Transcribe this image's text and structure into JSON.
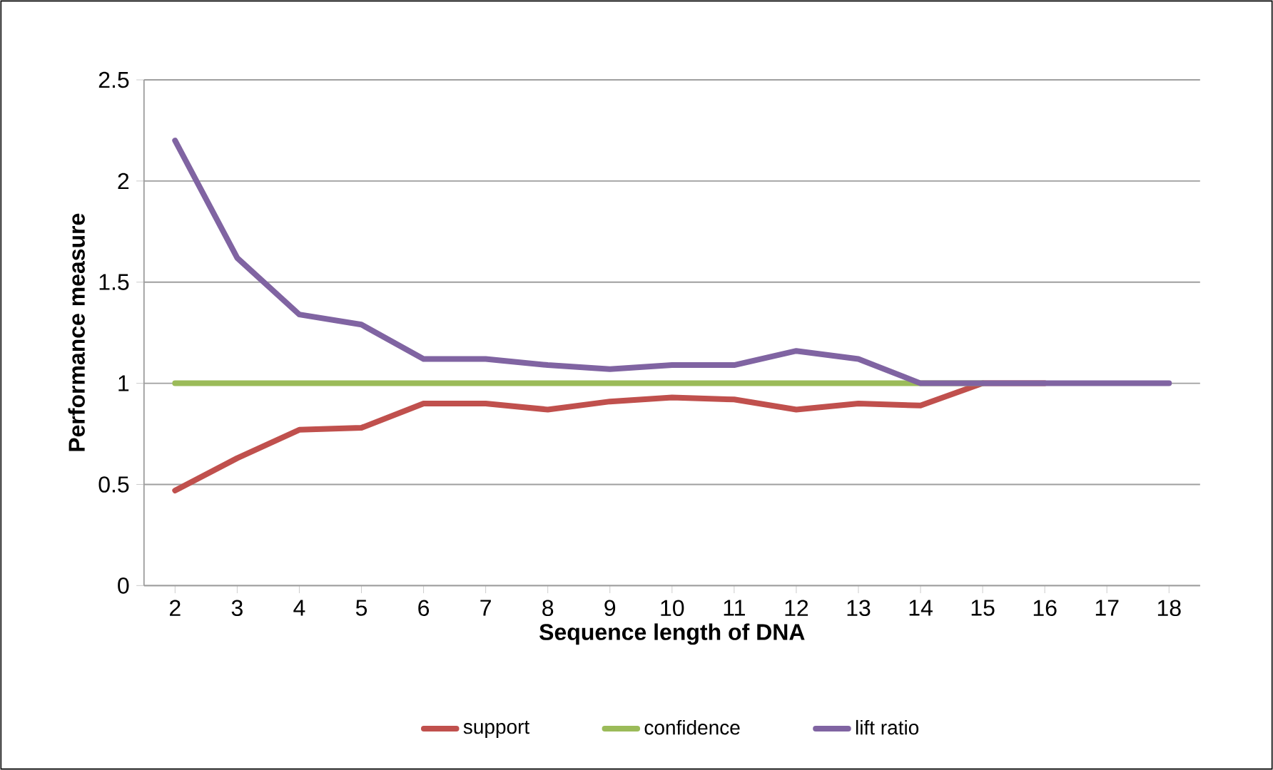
{
  "chart_data": {
    "type": "line",
    "xlabel": "Sequence length of DNA",
    "ylabel": "Performance measure",
    "categories": [
      "2",
      "3",
      "4",
      "5",
      "6",
      "7",
      "8",
      "9",
      "10",
      "11",
      "12",
      "13",
      "14",
      "15",
      "16",
      "17",
      "18"
    ],
    "ylim": [
      0,
      2.5
    ],
    "yticks": [
      0,
      0.5,
      1,
      1.5,
      2,
      2.5
    ],
    "grid": "y",
    "legend": "bottom",
    "marker": "none",
    "line_style": "solid",
    "series": [
      {
        "name": "support",
        "color": "#c0504d",
        "values": [
          0.47,
          0.63,
          0.77,
          0.78,
          0.9,
          0.9,
          0.87,
          0.91,
          0.93,
          0.92,
          0.87,
          0.9,
          0.89,
          1,
          1,
          null,
          null
        ]
      },
      {
        "name": "confidence",
        "color": "#9bbb59",
        "values": [
          1,
          1,
          1,
          1,
          1,
          1,
          1,
          1,
          1,
          1,
          1,
          1,
          1,
          1,
          null,
          null,
          null
        ]
      },
      {
        "name": "lift ratio",
        "color": "#8064a2",
        "values": [
          2.2,
          1.62,
          1.34,
          1.29,
          1.12,
          1.12,
          1.09,
          1.07,
          1.09,
          1.09,
          1.16,
          1.12,
          1.0,
          1,
          1,
          1,
          1
        ]
      }
    ]
  }
}
